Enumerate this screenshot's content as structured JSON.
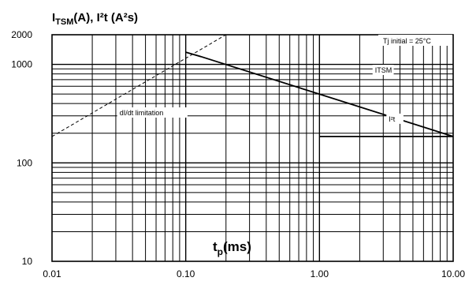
{
  "chart_data": {
    "type": "line",
    "title": "",
    "ylabel_main": "I",
    "ylabel_sub": "TSM",
    "ylabel_rest": "(A), I²t (A²s)",
    "xlabel_main": "t",
    "xlabel_sub": "p",
    "xlabel_rest": "(ms)",
    "x_scale": "log",
    "y_scale": "log",
    "xlim": [
      0.01,
      10
    ],
    "ylim": [
      10,
      2000
    ],
    "x_ticks": [
      {
        "value": 0.01,
        "label": "0.01"
      },
      {
        "value": 0.1,
        "label": "0.10"
      },
      {
        "value": 1,
        "label": "1.00"
      },
      {
        "value": 10,
        "label": "10.00"
      }
    ],
    "y_ticks": [
      {
        "value": 10,
        "label": "10"
      },
      {
        "value": 100,
        "label": "100"
      },
      {
        "value": 1000,
        "label": "1000"
      },
      {
        "value": 2000,
        "label": "2000"
      }
    ],
    "grid": true,
    "condition_label": "Tj initial = 25°C",
    "series": [
      {
        "name": "dI/dt limitation",
        "style": "dashed",
        "x": [
          0.01,
          0.2
        ],
        "y": [
          185,
          2000
        ]
      },
      {
        "name": "ITSM",
        "style": "solid",
        "x": [
          0.1,
          0.13,
          10
        ],
        "y": [
          1330,
          1200,
          185
        ]
      },
      {
        "name": "I²t",
        "style": "solid",
        "x": [
          1,
          10
        ],
        "y": [
          185,
          185
        ]
      }
    ],
    "annotations": [
      {
        "text": "dI/dt limitation",
        "x": 0.032,
        "y": 310
      },
      {
        "text": "ITSM",
        "x": 2.6,
        "y": 840
      },
      {
        "text": "I²t",
        "x": 3.3,
        "y": 268
      }
    ]
  }
}
